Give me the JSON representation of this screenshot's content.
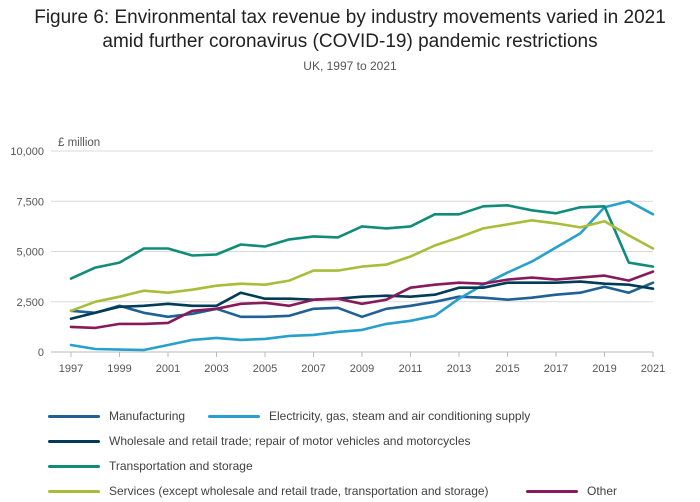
{
  "title_line1": "Figure 6: Environmental tax revenue by industry movements varied in 2021",
  "title_line2": "amid further coronavirus (COVID-19) pandemic restrictions",
  "subtitle": "UK, 1997 to 2021",
  "chart_data": {
    "type": "line",
    "title": "Figure 6: Environmental tax revenue by industry movements varied in 2021 amid further coronavirus (COVID-19) pandemic restrictions",
    "subtitle": "UK, 1997 to 2021",
    "ylabel": "£ million",
    "xlabel": "",
    "ylim": [
      0,
      10000
    ],
    "yticks": [
      0,
      2500,
      5000,
      7500,
      10000
    ],
    "ytick_labels": [
      "0",
      "2,500",
      "5,000",
      "7,500",
      "10,000"
    ],
    "xticks": [
      1997,
      1999,
      2001,
      2003,
      2005,
      2007,
      2009,
      2011,
      2013,
      2015,
      2017,
      2019,
      2021
    ],
    "x": [
      1997,
      1998,
      1999,
      2000,
      2001,
      2002,
      2003,
      2004,
      2005,
      2006,
      2007,
      2008,
      2009,
      2010,
      2011,
      2012,
      2013,
      2014,
      2015,
      2016,
      2017,
      2018,
      2019,
      2020,
      2021
    ],
    "grid": true,
    "legend_position": "bottom",
    "series": [
      {
        "name": "Manufacturing",
        "color": "#206095",
        "values": [
          2050,
          1950,
          2300,
          1950,
          1750,
          1900,
          2150,
          1750,
          1750,
          1800,
          2150,
          2200,
          1750,
          2150,
          2300,
          2500,
          2750,
          2700,
          2600,
          2700,
          2850,
          2950,
          3250,
          2950,
          3450
        ]
      },
      {
        "name": "Electricity, gas, steam and air conditioning supply",
        "color": "#27a0cc",
        "values": [
          350,
          150,
          120,
          100,
          350,
          600,
          700,
          600,
          650,
          800,
          850,
          1000,
          1100,
          1400,
          1550,
          1800,
          2650,
          3350,
          3950,
          4500,
          5200,
          5900,
          7200,
          7500,
          6850
        ]
      },
      {
        "name": "Wholesale and retail trade; repair of motor vehicles and motorcycles",
        "color": "#003c57",
        "values": [
          1650,
          1950,
          2250,
          2300,
          2400,
          2300,
          2300,
          2950,
          2650,
          2650,
          2600,
          2650,
          2750,
          2800,
          2750,
          2850,
          3200,
          3200,
          3450,
          3450,
          3450,
          3500,
          3400,
          3350,
          3150
        ]
      },
      {
        "name": "Transportation and storage",
        "color": "#118c7b",
        "values": [
          3650,
          4200,
          4450,
          5150,
          5150,
          4800,
          4850,
          5350,
          5250,
          5600,
          5750,
          5700,
          6250,
          6150,
          6250,
          6850,
          6850,
          7250,
          7300,
          7050,
          6900,
          7200,
          7250,
          4450,
          4250
        ]
      },
      {
        "name": "Services (except wholesale and retail trade, transportation and storage)",
        "color": "#a8bd3a",
        "values": [
          2050,
          2500,
          2750,
          3050,
          2950,
          3100,
          3300,
          3400,
          3350,
          3550,
          4050,
          4050,
          4250,
          4350,
          4750,
          5300,
          5700,
          6150,
          6350,
          6550,
          6400,
          6200,
          6500,
          5800,
          5150
        ]
      },
      {
        "name": "Other",
        "color": "#871a5b",
        "values": [
          1250,
          1200,
          1400,
          1400,
          1450,
          2050,
          2150,
          2400,
          2450,
          2300,
          2600,
          2650,
          2400,
          2600,
          3200,
          3350,
          3450,
          3400,
          3600,
          3700,
          3600,
          3700,
          3800,
          3550,
          4000
        ]
      }
    ]
  }
}
